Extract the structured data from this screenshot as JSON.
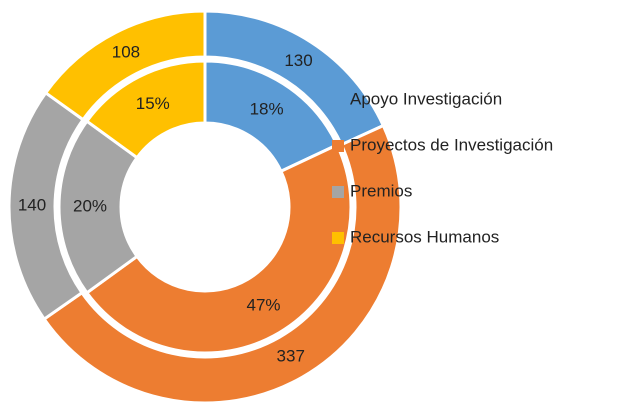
{
  "chart_data": {
    "type": "doughnut",
    "categories": [
      "Apoyo Investigación",
      "Proyectos de Investigación",
      "Premios",
      "Recursos Humanos"
    ],
    "colors": [
      "#5b9bd5",
      "#ed7d31",
      "#a5a5a5",
      "#ffc000"
    ],
    "series": [
      {
        "values": [
          130,
          337,
          140,
          108
        ]
      },
      {
        "values": [
          18,
          47,
          20,
          15
        ],
        "value_labels": [
          "18%",
          "47%",
          "20%",
          "15%"
        ]
      }
    ]
  }
}
